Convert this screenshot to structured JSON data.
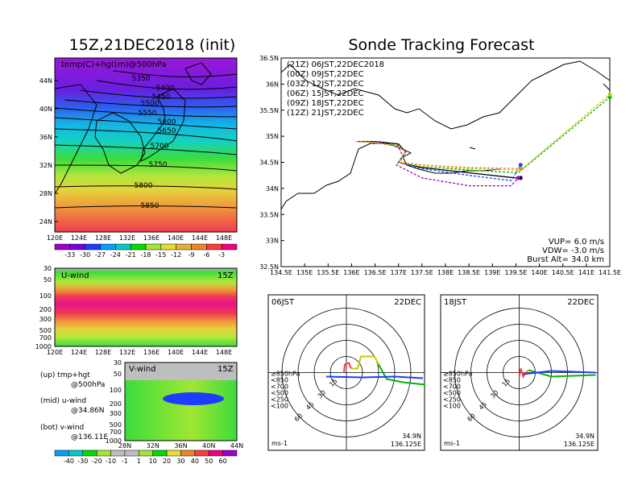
{
  "titles": {
    "left": "15Z,21DEC2018 (init)",
    "right": "Sonde Tracking Forecast"
  },
  "map500": {
    "label": "temp(C)+hgt(m)@500hPa",
    "contour_labels": [
      "5350",
      "5400",
      "5450",
      "5500",
      "5550",
      "5600",
      "5650",
      "5700",
      "5750",
      "5800",
      "5850"
    ],
    "lat_ticks": [
      "44N",
      "40N",
      "36N",
      "32N",
      "28N",
      "24N"
    ],
    "lon_ticks": [
      "120E",
      "124E",
      "128E",
      "132E",
      "136E",
      "140E",
      "144E",
      "148E"
    ],
    "colorbar_labels": [
      "-33",
      "-30",
      "-27",
      "-24",
      "-21",
      "-18",
      "-15",
      "-12",
      "-9",
      "-6",
      "-3"
    ],
    "colorbar_colors": [
      "#a000c8",
      "#7800dc",
      "#1e3cff",
      "#00a0ff",
      "#00c8c8",
      "#00dc00",
      "#a0e632",
      "#e6dc32",
      "#e6af2d",
      "#f08228",
      "#fa3c3c",
      "#f00082"
    ]
  },
  "uwind": {
    "label": "U-wind",
    "time": "15Z",
    "p_ticks": [
      "30",
      "50",
      "100",
      "200",
      "300",
      "500",
      "700",
      "1000"
    ],
    "lon_ticks": [
      "120E",
      "124E",
      "128E",
      "132E",
      "136E",
      "140E",
      "144E",
      "148E"
    ]
  },
  "vwind": {
    "label": "V-wind",
    "time": "15Z",
    "p_ticks": [
      "30",
      "50",
      "100",
      "200",
      "300",
      "500",
      "700",
      "1000"
    ],
    "lat_ticks": [
      "28N",
      "32N",
      "36N",
      "40N",
      "44N"
    ],
    "colorbar_labels": [
      "-40",
      "-30",
      "-20",
      "-10",
      "-1",
      "1",
      "10",
      "20",
      "30",
      "40",
      "50",
      "60"
    ],
    "colorbar_colors": [
      "#00a0ff",
      "#00c8c8",
      "#00dc00",
      "#a0e632",
      "#bebebe",
      "#bebebe",
      "#a0e632",
      "#00dc00",
      "#e6dc32",
      "#f08228",
      "#fa3c3c",
      "#f00082",
      "#a000c8"
    ]
  },
  "legend_notes": {
    "up": "(up) tmp+hgt",
    "up2": "@500hPa",
    "mid": "(mid) u-wind",
    "mid2": "@34.86N",
    "bot": "(bot) v-wind",
    "bot2": "@136.11E"
  },
  "track": {
    "header": "(21Z) 06JST,22DEC2018",
    "runs": [
      {
        "label": "(00Z)  09JST,22DEC",
        "color": "#a000c8"
      },
      {
        "label": "(03Z)  12JST,22DEC",
        "color": "#1e3cff"
      },
      {
        "label": "(06Z)  15JST,22DEC",
        "color": "#00b400"
      },
      {
        "label": "(09Z)  18JST,22DEC",
        "color": "#c8c800"
      },
      {
        "label": "(12Z)  21JST,22DEC",
        "color": "#f08228"
      }
    ],
    "lat_ticks": [
      "36.5N",
      "36N",
      "35.5N",
      "35N",
      "34.5N",
      "34N",
      "33.5N",
      "33N",
      "32.5N"
    ],
    "lon_ticks": [
      "134.5E",
      "135E",
      "135.5E",
      "136E",
      "136.5E",
      "137E",
      "137.5E",
      "138E",
      "138.5E",
      "139E",
      "139.5E",
      "140E",
      "140.5E",
      "141E",
      "141.5E"
    ],
    "info": [
      "VUP=  6.0  m/s",
      "VDW= -3.0  m/s",
      "Burst Alt=  34.0  km"
    ]
  },
  "hodo_left": {
    "time": "06JST",
    "date": "22DEC",
    "ring_labels": [
      "15",
      "30",
      "45",
      "60"
    ],
    "levels": [
      "≥850hPa",
      "<850",
      "<700",
      "<500",
      "<250",
      "<100"
    ],
    "level_colors": [
      "#fa3c3c",
      "#f08228",
      "#c8c800",
      "#00b400",
      "#00a0ff",
      "#1e3cff"
    ],
    "unit": "ms-1",
    "lat": "34.9N",
    "lon": "136.125E"
  },
  "hodo_right": {
    "time": "18JST",
    "date": "22DEC",
    "ring_labels": [
      "15",
      "30",
      "45",
      "60"
    ],
    "levels": [
      "≥850hPa",
      "<850",
      "<700",
      "<500",
      "<250",
      "<100"
    ],
    "level_colors": [
      "#fa3c3c",
      "#f08228",
      "#c8c800",
      "#00b400",
      "#00a0ff",
      "#1e3cff"
    ],
    "unit": "ms-1",
    "lat": "34.9N",
    "lon": "136.125E"
  },
  "chart_data": [
    {
      "type": "heatmap",
      "title": "15Z,21DEC2018 (init)",
      "subtitle": "temp(C)+hgt(m)@500hPa",
      "x_ticks": [
        "120E",
        "124E",
        "128E",
        "132E",
        "136E",
        "140E",
        "144E",
        "148E"
      ],
      "y_ticks": [
        "24N",
        "28N",
        "32N",
        "36N",
        "40N",
        "44N"
      ],
      "contour_levels": [
        5350,
        5400,
        5450,
        5500,
        5550,
        5600,
        5650,
        5700,
        5750,
        5800,
        5850
      ],
      "colorbar": [
        -33,
        -30,
        -27,
        -24,
        -21,
        -18,
        -15,
        -12,
        -9,
        -6,
        -3
      ]
    },
    {
      "type": "heatmap",
      "title": "U-wind",
      "x_ticks": [
        "120E",
        "124E",
        "128E",
        "132E",
        "136E",
        "140E",
        "144E",
        "148E"
      ],
      "y_ticks": [
        "30",
        "50",
        "100",
        "200",
        "300",
        "500",
        "700",
        "1000"
      ]
    },
    {
      "type": "heatmap",
      "title": "V-wind",
      "x_ticks": [
        "28N",
        "32N",
        "36N",
        "40N",
        "44N"
      ],
      "y_ticks": [
        "30",
        "50",
        "100",
        "200",
        "300",
        "500",
        "700",
        "1000"
      ],
      "colorbar": [
        -40,
        -30,
        -20,
        -10,
        -1,
        1,
        10,
        20,
        30,
        40,
        50,
        60
      ]
    },
    {
      "type": "line",
      "title": "Sonde Tracking Forecast",
      "xlim": [
        134.5,
        141.5
      ],
      "ylim": [
        32.5,
        36.5
      ],
      "series": [
        {
          "name": "(21Z) 06JST,22DEC2018",
          "color": "#000000",
          "x": [
            136.1,
            136.5,
            137.0,
            137.15,
            137.0,
            137.5,
            138.5,
            139.5,
            139.6
          ],
          "y": [
            34.9,
            34.9,
            34.85,
            34.7,
            34.5,
            34.4,
            34.3,
            34.2,
            34.2
          ]
        },
        {
          "name": "(00Z)  09JST,22DEC",
          "color": "#a000c8",
          "x": [
            136.1,
            136.5,
            137.0,
            137.1,
            136.95,
            137.5,
            138.5,
            139.4,
            139.55
          ],
          "y": [
            34.9,
            34.9,
            34.8,
            34.6,
            34.45,
            34.2,
            34.05,
            34.05,
            34.2
          ]
        },
        {
          "name": "(03Z)  12JST,22DEC",
          "color": "#1e3cff",
          "x": [
            136.1,
            136.5,
            137.0,
            137.15,
            137.0,
            137.5,
            138.5,
            139.4,
            139.6
          ],
          "y": [
            34.9,
            34.88,
            34.82,
            34.7,
            34.5,
            34.38,
            34.25,
            34.15,
            34.45
          ]
        },
        {
          "name": "(06Z)  15JST,22DEC",
          "color": "#00b400",
          "x": [
            136.1,
            136.5,
            137.0,
            137.15,
            137.0,
            137.5,
            138.5,
            139.55,
            141.5
          ],
          "y": [
            34.9,
            34.88,
            34.82,
            34.7,
            34.5,
            34.42,
            34.35,
            34.3,
            35.75
          ]
        },
        {
          "name": "(09Z)  18JST,22DEC",
          "color": "#c8c800",
          "x": [
            136.1,
            136.5,
            137.0,
            137.15,
            137.0,
            137.5,
            138.5,
            139.6,
            141.5
          ],
          "y": [
            34.9,
            34.88,
            34.8,
            34.7,
            34.5,
            34.42,
            34.38,
            34.35,
            35.8
          ]
        },
        {
          "name": "(12Z)  21JST,22DEC",
          "color": "#f08228",
          "x": [
            136.1,
            136.5,
            137.0,
            137.15,
            137.0,
            137.5,
            138.5,
            139.6
          ],
          "y": [
            34.9,
            34.88,
            34.8,
            34.7,
            34.5,
            34.45,
            34.4,
            34.38
          ]
        }
      ]
    }
  ]
}
